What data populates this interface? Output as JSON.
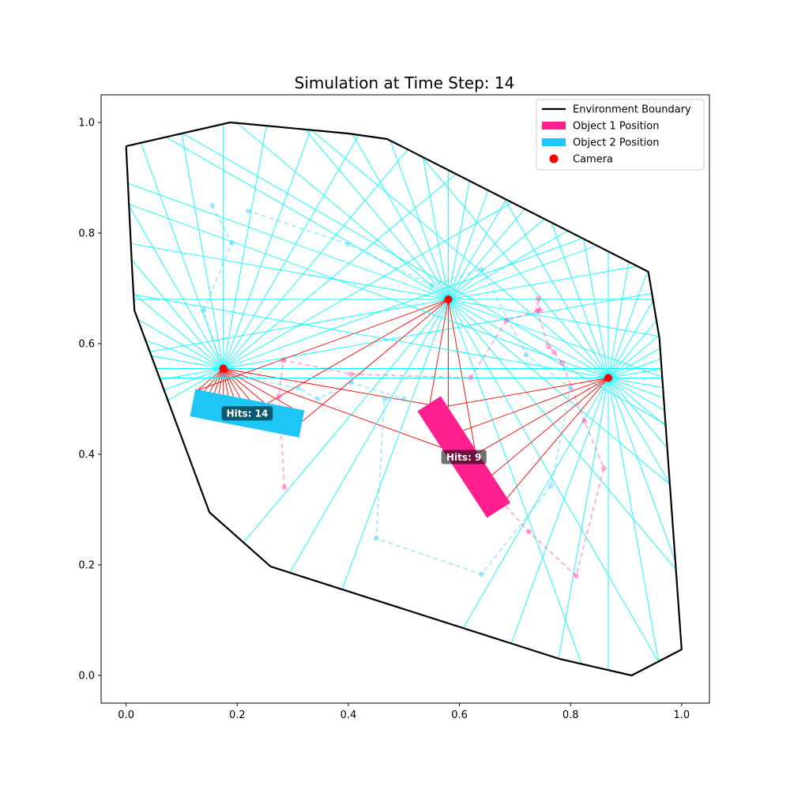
{
  "chart_data": {
    "type": "scatter",
    "title": "Simulation at Time Step: 14",
    "xlim": [
      -0.045,
      1.05
    ],
    "ylim": [
      -0.05,
      1.05
    ],
    "xticks": [
      0.0,
      0.2,
      0.4,
      0.6,
      0.8,
      1.0
    ],
    "xtick_labels": [
      "0.0",
      "0.2",
      "0.4",
      "0.6",
      "0.8",
      "1.0"
    ],
    "yticks": [
      0.0,
      0.2,
      0.4,
      0.6,
      0.8,
      1.0
    ],
    "ytick_labels": [
      "0.0",
      "0.2",
      "0.4",
      "0.6",
      "0.8",
      "1.0"
    ],
    "grid": false,
    "legend_position": "top-right",
    "legend": [
      {
        "label": "Environment Boundary",
        "kind": "line",
        "color": "#000000"
      },
      {
        "label": "Object 1 Position",
        "kind": "patch",
        "color": "#ff1f8e"
      },
      {
        "label": "Object 2 Position",
        "kind": "patch",
        "color": "#1ec6f5"
      },
      {
        "label": "Camera",
        "kind": "marker",
        "color": "#ff0000"
      }
    ],
    "boundary": [
      [
        0.0,
        0.957
      ],
      [
        0.187,
        1.0
      ],
      [
        0.21,
        0.998
      ],
      [
        0.4,
        0.98
      ],
      [
        0.47,
        0.97
      ],
      [
        0.94,
        0.73
      ],
      [
        0.96,
        0.61
      ],
      [
        1.0,
        0.047
      ],
      [
        0.91,
        0.0
      ],
      [
        0.78,
        0.03
      ],
      [
        0.26,
        0.197
      ],
      [
        0.15,
        0.295
      ],
      [
        0.015,
        0.66
      ],
      [
        0.01,
        0.75
      ],
      [
        0.0,
        0.957
      ]
    ],
    "cameras": [
      {
        "x": 0.175,
        "y": 0.555
      },
      {
        "x": 0.58,
        "y": 0.68
      },
      {
        "x": 0.868,
        "y": 0.538
      }
    ],
    "ray_count": 36,
    "ray_color": "#00ffff",
    "hit_ray_color": "#ff0000",
    "object1": {
      "center": [
        0.608,
        0.395
      ],
      "width": 0.05,
      "length": 0.23,
      "angle_deg": -57,
      "color": "#ff1f8e",
      "hits_label": "Hits: 9",
      "trail": [
        [
          0.285,
          0.34
        ],
        [
          0.275,
          0.505
        ],
        [
          0.283,
          0.57
        ],
        [
          0.405,
          0.545
        ],
        [
          0.62,
          0.538
        ],
        [
          0.685,
          0.642
        ],
        [
          0.745,
          0.66
        ],
        [
          0.742,
          0.682
        ],
        [
          0.74,
          0.66
        ],
        [
          0.76,
          0.595
        ],
        [
          0.77,
          0.585
        ],
        [
          0.785,
          0.565
        ],
        [
          0.825,
          0.46
        ],
        [
          0.86,
          0.375
        ],
        [
          0.81,
          0.18
        ],
        [
          0.725,
          0.26
        ],
        [
          0.68,
          0.31
        ]
      ]
    },
    "object2": {
      "center": [
        0.218,
        0.474
      ],
      "width": 0.05,
      "length": 0.2,
      "angle_deg": -11,
      "color": "#1ec6f5",
      "hits_label": "Hits: 14",
      "trail": [
        [
          0.155,
          0.85
        ],
        [
          0.19,
          0.782
        ],
        [
          0.14,
          0.66
        ],
        [
          0.175,
          0.545
        ],
        [
          0.31,
          0.52
        ],
        [
          0.345,
          0.5
        ],
        [
          0.405,
          0.53
        ],
        [
          0.5,
          0.5
        ],
        [
          0.465,
          0.5
        ],
        [
          0.45,
          0.248
        ],
        [
          0.64,
          0.183
        ],
        [
          0.765,
          0.343
        ],
        [
          0.8,
          0.52
        ],
        [
          0.72,
          0.58
        ],
        [
          0.64,
          0.735
        ],
        [
          0.55,
          0.705
        ],
        [
          0.4,
          0.78
        ],
        [
          0.22,
          0.84
        ]
      ]
    }
  }
}
